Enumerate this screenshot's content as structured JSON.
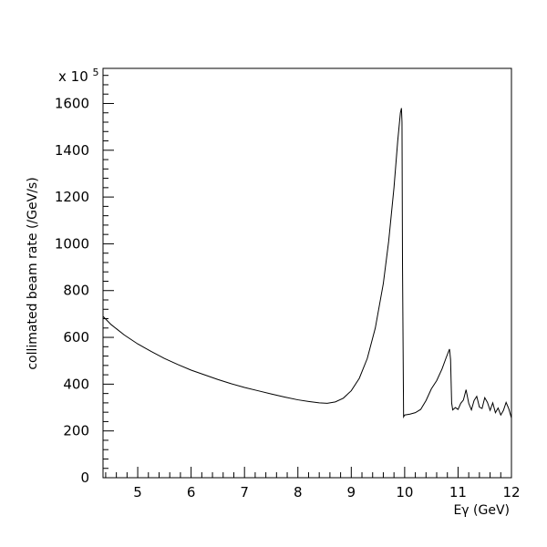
{
  "chart_data": {
    "type": "line",
    "title": "",
    "xlabel": "Eγ (GeV)",
    "ylabel": "collimated beam rate (/GeV/s)",
    "y_multiplier": "x 10",
    "y_multiplier_exp": "5",
    "xlim": [
      4.35,
      12.0
    ],
    "ylim": [
      0,
      1750
    ],
    "x_ticks": [
      5,
      6,
      7,
      8,
      9,
      10,
      11,
      12
    ],
    "x_tick_labels": [
      "5",
      "6",
      "7",
      "8",
      "9",
      "10",
      "11",
      "12"
    ],
    "y_ticks": [
      0,
      200,
      400,
      600,
      800,
      1000,
      1200,
      1400,
      1600
    ],
    "y_tick_labels": [
      "0",
      "200",
      "400",
      "600",
      "800",
      "1000",
      "1200",
      "1400",
      "1600"
    ],
    "grid": false,
    "series": [
      {
        "x": [
          4.35,
          4.5,
          4.75,
          5.0,
          5.25,
          5.5,
          5.75,
          6.0,
          6.25,
          6.5,
          6.75,
          7.0,
          7.25,
          7.5,
          7.75,
          8.0,
          8.2,
          8.4,
          8.55,
          8.7,
          8.85,
          9.0,
          9.15,
          9.3,
          9.45,
          9.6,
          9.7,
          9.8,
          9.87,
          9.92,
          9.94,
          9.95,
          9.96,
          9.98,
          10.0,
          10.1,
          10.2,
          10.3,
          10.4,
          10.5,
          10.6,
          10.7,
          10.78,
          10.84,
          10.86,
          10.88,
          10.9,
          10.95,
          11.0,
          11.05,
          11.1,
          11.15,
          11.2,
          11.25,
          11.3,
          11.35,
          11.4,
          11.45,
          11.5,
          11.55,
          11.6,
          11.65,
          11.7,
          11.75,
          11.8,
          11.85,
          11.9,
          11.95,
          12.0
        ],
        "y": [
          690,
          655,
          610,
          572,
          540,
          510,
          484,
          460,
          440,
          420,
          402,
          386,
          372,
          358,
          345,
          333,
          326,
          320,
          318,
          324,
          340,
          372,
          425,
          510,
          640,
          830,
          1010,
          1240,
          1440,
          1560,
          1580,
          1520,
          900,
          260,
          268,
          272,
          278,
          292,
          330,
          380,
          415,
          465,
          515,
          550,
          505,
          320,
          290,
          300,
          292,
          318,
          332,
          376,
          318,
          290,
          330,
          348,
          302,
          296,
          342,
          322,
          288,
          320,
          278,
          298,
          268,
          288,
          322,
          295,
          255
        ]
      }
    ]
  }
}
